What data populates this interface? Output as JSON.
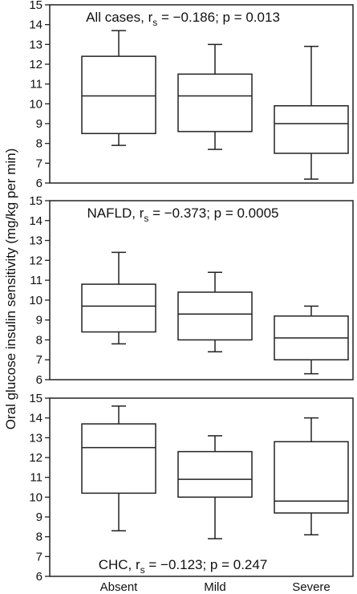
{
  "chart_data": {
    "type": "box",
    "ylabel": "Oral glucose insulin sensitivity (mg/kg per min)",
    "categories": [
      "Absent",
      "Mild",
      "Severe"
    ],
    "panels": [
      {
        "title": "All cases, r_s = −0.186; p = 0.013",
        "title_prefix": "All cases, r",
        "title_sub": "s",
        "title_suffix": " = −0.186; p = 0.013",
        "title_position": "top",
        "ylim": [
          6,
          15
        ],
        "yticks": [
          6,
          7,
          8,
          9,
          10,
          11,
          12,
          13,
          14,
          15
        ],
        "boxes": [
          {
            "category": "Absent",
            "min": 7.9,
            "q1": 8.5,
            "median": 10.4,
            "q3": 12.4,
            "max": 13.7
          },
          {
            "category": "Mild",
            "min": 7.7,
            "q1": 8.6,
            "median": 10.4,
            "q3": 11.5,
            "max": 13.0
          },
          {
            "category": "Severe",
            "min": 6.2,
            "q1": 7.5,
            "median": 9.0,
            "q3": 9.9,
            "max": 12.9
          }
        ]
      },
      {
        "title": "NAFLD, r_s = −0.373; p = 0.0005",
        "title_prefix": "NAFLD, r",
        "title_sub": "s",
        "title_suffix": " = −0.373; p = 0.0005",
        "title_position": "top",
        "ylim": [
          6,
          15
        ],
        "yticks": [
          6,
          7,
          8,
          9,
          10,
          11,
          12,
          13,
          14,
          15
        ],
        "boxes": [
          {
            "category": "Absent",
            "min": 7.8,
            "q1": 8.4,
            "median": 9.7,
            "q3": 10.8,
            "max": 12.4
          },
          {
            "category": "Mild",
            "min": 7.4,
            "q1": 8.0,
            "median": 9.3,
            "q3": 10.4,
            "max": 11.4
          },
          {
            "category": "Severe",
            "min": 6.3,
            "q1": 7.0,
            "median": 8.1,
            "q3": 9.2,
            "max": 9.7
          }
        ]
      },
      {
        "title": "CHC, r_s = −0.123; p = 0.247",
        "title_prefix": "CHC, r",
        "title_sub": "s",
        "title_suffix": " = −0.123; p = 0.247",
        "title_position": "bottom",
        "ylim": [
          6,
          15
        ],
        "yticks": [
          6,
          7,
          8,
          9,
          10,
          11,
          12,
          13,
          14,
          15
        ],
        "boxes": [
          {
            "category": "Absent",
            "min": 8.3,
            "q1": 10.2,
            "median": 12.5,
            "q3": 13.7,
            "max": 14.6
          },
          {
            "category": "Mild",
            "min": 7.9,
            "q1": 10.0,
            "median": 10.9,
            "q3": 12.3,
            "max": 13.1
          },
          {
            "category": "Severe",
            "min": 8.1,
            "q1": 9.2,
            "median": 9.8,
            "q3": 12.8,
            "max": 14.0
          }
        ]
      }
    ]
  }
}
